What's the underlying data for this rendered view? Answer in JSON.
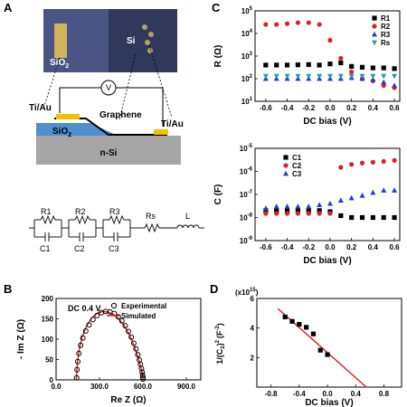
{
  "panels": {
    "A": "A",
    "B": "B",
    "C": "C",
    "D": "D"
  },
  "device": {
    "photo_labels": {
      "sio2": "SiO",
      "sio2_sub": "2",
      "si": "Si"
    },
    "schematic_labels": {
      "v": "V",
      "tiau_left": "Ti/Au",
      "tiau_right": "Ti/Au",
      "graphene": "Graphene",
      "sio2": "SiO",
      "sio2_sub": "2",
      "nsi": "n-Si"
    },
    "circuit_labels": {
      "r1": "R1",
      "r2": "R2",
      "r3": "R3",
      "c1": "C1",
      "c2": "C2",
      "c3": "C3",
      "rs": "Rs",
      "l": "L"
    }
  },
  "chart_data": [
    {
      "id": "B",
      "type": "scatter",
      "annotation": "DC 0.4 V",
      "xlabel": "Re Z (Ω)",
      "ylabel": "- Im Z (Ω)",
      "xlim": [
        0,
        1000
      ],
      "ylim": [
        0,
        200
      ],
      "xticks": [
        "0.0",
        "300.0",
        "600.0",
        "900.0"
      ],
      "xtick_values": [
        0,
        300,
        600,
        900
      ],
      "yticks": [
        "0",
        "50",
        "100",
        "150",
        "200"
      ],
      "series": [
        {
          "name": "Experimental",
          "marker": "open-circle",
          "color": "#000000",
          "x": [
            142,
            145,
            150,
            158,
            170,
            185,
            205,
            228,
            255,
            283,
            313,
            343,
            373,
            402,
            430,
            455,
            478,
            500,
            520,
            537,
            552,
            565,
            575,
            583,
            590,
            595,
            598,
            600,
            601
          ],
          "y": [
            5,
            25,
            45,
            65,
            85,
            103,
            120,
            135,
            148,
            158,
            165,
            168,
            167,
            163,
            155,
            145,
            133,
            119,
            105,
            90,
            76,
            62,
            49,
            38,
            28,
            19,
            12,
            6,
            2
          ]
        },
        {
          "name": "Simulated",
          "marker": "line",
          "color": "#d62020",
          "x": [
            140,
            147,
            160,
            180,
            210,
            245,
            285,
            325,
            365,
            405,
            440,
            475,
            505,
            530,
            555,
            575,
            590,
            598,
            602
          ],
          "y": [
            0,
            40,
            75,
            105,
            132,
            152,
            164,
            168,
            166,
            159,
            147,
            131,
            112,
            92,
            68,
            45,
            25,
            10,
            0
          ]
        }
      ]
    },
    {
      "id": "C-top",
      "type": "scatter",
      "xlabel": "DC bias (V)",
      "ylabel": "R (Ω)",
      "yscale": "log",
      "xlim": [
        -0.7,
        0.65
      ],
      "ylim_exp": [
        1,
        5
      ],
      "xticks": [
        "-0.6",
        "-0.4",
        "-0.2",
        "0.0",
        "0.2",
        "0.4",
        "0.6"
      ],
      "xtick_values": [
        -0.6,
        -0.4,
        -0.2,
        0.0,
        0.2,
        0.4,
        0.6
      ],
      "x": [
        -0.6,
        -0.5,
        -0.4,
        -0.3,
        -0.2,
        -0.1,
        0.0,
        0.1,
        0.2,
        0.3,
        0.4,
        0.5,
        0.6
      ],
      "series": [
        {
          "name": "R1",
          "marker": "square",
          "color": "#000000",
          "values": [
            400,
            400,
            400,
            410,
            420,
            400,
            450,
            500,
            350,
            320,
            300,
            300,
            280
          ]
        },
        {
          "name": "R2",
          "marker": "circle",
          "color": "#e02020",
          "values": [
            25000,
            25000,
            27000,
            30000,
            30000,
            25000,
            5000,
            800,
            200,
            100,
            80,
            50,
            40
          ]
        },
        {
          "name": "R3",
          "marker": "triangle-up",
          "color": "#1f3fcc",
          "values": [
            100,
            100,
            100,
            100,
            100,
            100,
            100,
            100,
            110,
            100,
            90,
            70,
            50
          ]
        },
        {
          "name": "Rs",
          "marker": "triangle-down",
          "color": "#2a9d9d",
          "values": [
            130,
            130,
            130,
            130,
            130,
            130,
            130,
            130,
            130,
            130,
            130,
            130,
            130
          ]
        }
      ]
    },
    {
      "id": "C-bottom",
      "type": "scatter",
      "xlabel": "DC bias (V)",
      "ylabel": "C (F)",
      "yscale": "log",
      "xlim": [
        -0.7,
        0.65
      ],
      "ylim_exp": [
        -9,
        -5
      ],
      "xticks": [
        "-0.6",
        "-0.4",
        "-0.2",
        "0.0",
        "0.2",
        "0.4",
        "0.6"
      ],
      "xtick_values": [
        -0.6,
        -0.4,
        -0.2,
        0.0,
        0.2,
        0.4,
        0.6
      ],
      "x": [
        -0.6,
        -0.5,
        -0.4,
        -0.3,
        -0.2,
        -0.1,
        0.0,
        0.1,
        0.2,
        0.3,
        0.4,
        0.5,
        0.6
      ],
      "series": [
        {
          "name": "C1",
          "marker": "square",
          "color": "#000000",
          "values": [
            2e-08,
            2e-08,
            2e-08,
            2e-08,
            2e-08,
            2e-08,
            1.8e-08,
            1.2e-08,
            1e-08,
            1e-08,
            1e-08,
            1e-08,
            1e-08
          ]
        },
        {
          "name": "C2",
          "marker": "circle",
          "color": "#e02020",
          "values": [
            1.5e-08,
            1.5e-08,
            1.5e-08,
            1.5e-08,
            1.5e-08,
            1.5e-08,
            1.5e-08,
            1.5e-06,
            2e-06,
            2.3e-06,
            2.5e-06,
            2.7e-06,
            3e-06
          ]
        },
        {
          "name": "C3",
          "marker": "triangle-up",
          "color": "#1f3fcc",
          "values": [
            2.5e-08,
            3e-08,
            3e-08,
            3e-08,
            3e-08,
            3.5e-08,
            4e-08,
            5.5e-08,
            7e-08,
            9e-08,
            1.2e-07,
            1.5e-07,
            1.5e-07
          ]
        }
      ]
    },
    {
      "id": "D",
      "type": "scatter",
      "xlabel": "DC bias (V)",
      "ylabel": "1/(C",
      "ylabel_sub": "2",
      "ylabel_mid": ")",
      "ylabel_sup": "2",
      "ylabel_end": "(F",
      "ylabel_sup2": "-2",
      "ylabel_close": ")",
      "multiplier": "(x10",
      "multiplier_exp": "15",
      "multiplier_close": ")",
      "xlim": [
        -1.0,
        1.05
      ],
      "ylim": [
        0,
        6
      ],
      "xticks": [
        "-0.8",
        "-0.4",
        "0.0",
        "0.4",
        "0.8"
      ],
      "xtick_values": [
        -0.8,
        -0.4,
        0.0,
        0.4,
        0.8
      ],
      "yticks": [
        "2",
        "4",
        "6"
      ],
      "ytick_values": [
        2,
        4,
        6
      ],
      "points": {
        "marker": "square",
        "color": "#000000",
        "x": [
          -0.6,
          -0.5,
          -0.4,
          -0.3,
          -0.2,
          -0.1,
          0.0
        ],
        "y": [
          4.75,
          4.45,
          4.25,
          4.05,
          3.6,
          2.5,
          2.2
        ]
      },
      "fit": {
        "color": "#d62020",
        "x": [
          -0.7,
          0.55
        ],
        "y": [
          5.3,
          0
        ]
      }
    }
  ]
}
